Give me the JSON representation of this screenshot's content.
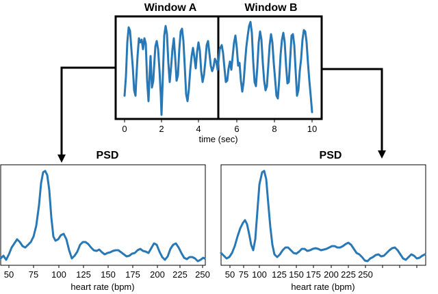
{
  "top_panel": {
    "window_a_label": "Window A",
    "window_b_label": "Window B",
    "x_tick_labels": [
      "0",
      "2",
      "4",
      "6",
      "8",
      "10"
    ],
    "x_axis_label": "time (sec)"
  },
  "psd_left": {
    "title": "PSD",
    "x_tick_labels": [
      "50",
      "75",
      "100",
      "125",
      "150",
      "175",
      "200",
      "225",
      "250"
    ],
    "x_axis_label": "heart rate (bpm)"
  },
  "psd_right": {
    "title": "PSD",
    "x_tick_labels": [
      "50",
      "75",
      "100",
      "125",
      "150",
      "175",
      "200",
      "225",
      "250"
    ],
    "x_axis_label": "heart rate (bpm)"
  },
  "colors": {
    "signal": "#2878b5",
    "frame": "#000000"
  }
}
